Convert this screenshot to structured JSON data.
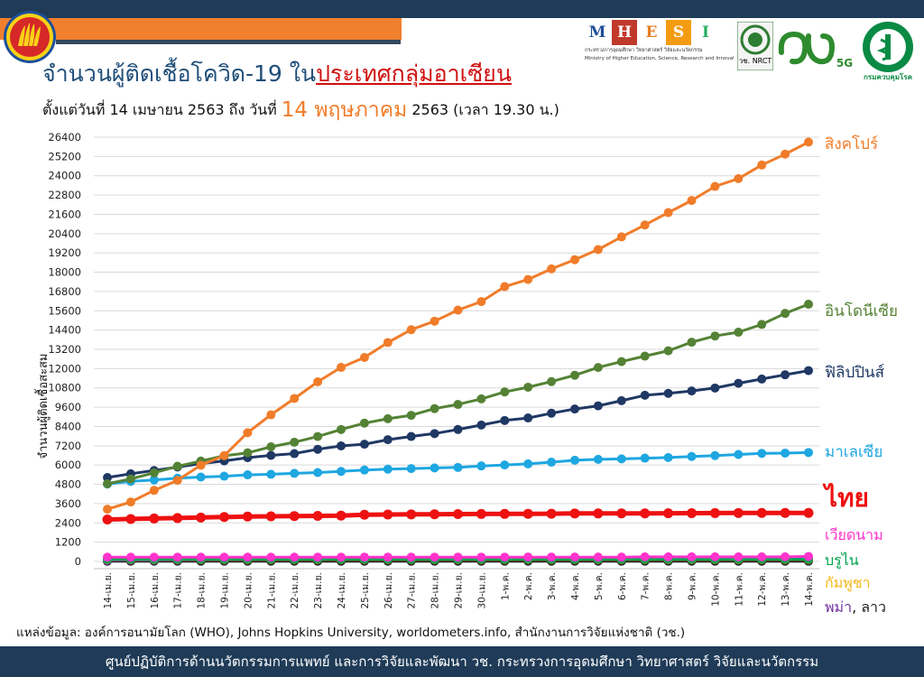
{
  "header": {
    "title_prefix": "จำนวนผู้ติดเชื้อโควิด-19 ใน",
    "title_highlight": "ประเทศกลุ่มอาเซียน",
    "subtitle_part1": "ตั้งแต่วันที่ 14 เมษายน 2563 ถึง วันที่ ",
    "subtitle_date": "14 พฤษภาคม",
    "subtitle_part2": " 2563 (เวลา 19.30 น.)"
  },
  "logos": {
    "mhesi_letters": [
      "M",
      "H",
      "E",
      "S",
      "I"
    ],
    "mhesi_colors": [
      "#1f4e99",
      "#c0392b",
      "#e67e22",
      "#f39c12",
      "#27ae60"
    ],
    "mhesi_subtitle": "กระทรวงการอุดมศึกษา วิทยาศาสตร์ วิจัยและนวัตกรรม",
    "mhesi_subtitle_en": "Ministry of Higher Education, Science, Research and Innovation",
    "nrct_text": "วช. NRCT",
    "fiveg_text": "5G",
    "ddc_text": "กรมควบคุมโรค"
  },
  "chart_data": {
    "type": "line",
    "ylabel": "จำนวนผู้ติดเชื้อสะสม",
    "ylim": [
      0,
      26400
    ],
    "yticks": [
      0,
      1200,
      2400,
      3600,
      4800,
      6000,
      7200,
      8400,
      9600,
      10800,
      12000,
      13200,
      14400,
      15600,
      16800,
      18000,
      19200,
      20400,
      21600,
      22800,
      24000,
      25200,
      26400
    ],
    "grid": true,
    "categories": [
      "14-เม.ย.",
      "15-เม.ย.",
      "16-เม.ย.",
      "17-เม.ย.",
      "18-เม.ย.",
      "19-เม.ย.",
      "20-เม.ย.",
      "21-เม.ย.",
      "22-เม.ย.",
      "23-เม.ย.",
      "24-เม.ย.",
      "25-เม.ย.",
      "26-เม.ย.",
      "27-เม.ย.",
      "28-เม.ย.",
      "29-เม.ย.",
      "30-เม.ย.",
      "1-พ.ค.",
      "2-พ.ค.",
      "3-พ.ค.",
      "4-พ.ค.",
      "5-พ.ค.",
      "6-พ.ค.",
      "7-พ.ค.",
      "8-พ.ค.",
      "9-พ.ค.",
      "10-พ.ค.",
      "11-พ.ค.",
      "12-พ.ค.",
      "13-พ.ค.",
      "14-พ.ค."
    ],
    "series": [
      {
        "name": "สิงคโปร์",
        "color": "#f07c2a",
        "values": [
          3252,
          3699,
          4427,
          5050,
          5992,
          6588,
          8014,
          9125,
          10141,
          11178,
          12075,
          12693,
          13624,
          14423,
          14951,
          15641,
          16169,
          17101,
          17548,
          18205,
          18778,
          19410,
          20198,
          20939,
          21707,
          22460,
          23336,
          23822,
          24671,
          25346,
          26098
        ]
      },
      {
        "name": "อินโดนีเซีย",
        "color": "#548235",
        "values": [
          4839,
          5136,
          5516,
          5923,
          6248,
          6575,
          6760,
          7135,
          7418,
          7775,
          8211,
          8607,
          8882,
          9096,
          9511,
          9771,
          10118,
          10551,
          10843,
          11192,
          11587,
          12071,
          12438,
          12776,
          13112,
          13645,
          14032,
          14265,
          14749,
          15438,
          16006
        ]
      },
      {
        "name": "ฟิลิปปินส์",
        "color": "#1f3864",
        "values": [
          5223,
          5453,
          5660,
          5878,
          6087,
          6259,
          6459,
          6599,
          6710,
          6981,
          7192,
          7294,
          7579,
          7777,
          7958,
          8212,
          8488,
          8772,
          8928,
          9223,
          9485,
          9684,
          10004,
          10343,
          10463,
          10610,
          10794,
          11086,
          11350,
          11618,
          11876
        ]
      },
      {
        "name": "มาเลเซีย",
        "color": "#1ea7e1",
        "values": [
          4817,
          4987,
          5072,
          5182,
          5251,
          5305,
          5389,
          5425,
          5482,
          5532,
          5603,
          5691,
          5742,
          5780,
          5820,
          5851,
          5945,
          6002,
          6071,
          6176,
          6298,
          6353,
          6383,
          6428,
          6467,
          6535,
          6589,
          6656,
          6726,
          6742,
          6779
        ]
      },
      {
        "name": "ไทย",
        "color": "#ee1111",
        "values": [
          2613,
          2643,
          2672,
          2700,
          2733,
          2765,
          2792,
          2811,
          2826,
          2839,
          2854,
          2907,
          2922,
          2931,
          2938,
          2947,
          2954,
          2960,
          2966,
          2969,
          2987,
          2988,
          2989,
          2992,
          3000,
          3004,
          3009,
          3015,
          3017,
          3017,
          3018
        ]
      },
      {
        "name": "เวียดนาม",
        "color": "#ff33cc",
        "values": [
          266,
          267,
          268,
          268,
          268,
          268,
          268,
          268,
          268,
          268,
          270,
          270,
          270,
          270,
          270,
          270,
          270,
          270,
          271,
          271,
          271,
          271,
          271,
          288,
          288,
          288,
          288,
          288,
          288,
          288,
          312
        ]
      },
      {
        "name": "บรูไน",
        "color": "#00a44f",
        "values": [
          136,
          136,
          136,
          136,
          138,
          138,
          138,
          138,
          138,
          138,
          138,
          138,
          138,
          138,
          138,
          138,
          138,
          138,
          138,
          138,
          138,
          138,
          138,
          138,
          141,
          141,
          141,
          141,
          141,
          141,
          141
        ]
      },
      {
        "name": "กัมพูชา",
        "color": "#f3b81a",
        "values": [
          122,
          122,
          122,
          122,
          122,
          122,
          122,
          122,
          122,
          122,
          122,
          122,
          122,
          122,
          122,
          122,
          122,
          122,
          122,
          122,
          122,
          122,
          122,
          122,
          122,
          122,
          122,
          122,
          122,
          122,
          122
        ]
      },
      {
        "name": "พม่า",
        "color": "#7030a0",
        "values": [
          74,
          85,
          88,
          98,
          111,
          119,
          121,
          127,
          140,
          144,
          145,
          146,
          146,
          146,
          150,
          151,
          151,
          151,
          151,
          155,
          161,
          161,
          161,
          162,
          177,
          178,
          180,
          180,
          180,
          181,
          181
        ]
      },
      {
        "name": "ลาว",
        "color": "#222222",
        "values": [
          19,
          19,
          19,
          19,
          19,
          19,
          19,
          19,
          19,
          19,
          19,
          19,
          19,
          19,
          19,
          19,
          19,
          19,
          19,
          19,
          19,
          19,
          19,
          19,
          19,
          19,
          19,
          19,
          19,
          19,
          19
        ]
      }
    ],
    "labels": {
      "singapore": "สิงคโปร์",
      "indonesia": "อินโดนีเซีย",
      "philippines": "ฟิลิปปินส์",
      "malaysia": "มาเลเซีย",
      "thailand": "ไทย",
      "vietnam": "เวียดนาม",
      "brunei": "บรูไน",
      "cambodia": "กัมพูชา",
      "myanmar": "พม่า",
      "laos_sep": ", ",
      "laos": "ลาว"
    }
  },
  "source_text": "แหล่งข้อมูล: องค์การอนามัยโลก (WHO), Johns Hopkins University, worldometers.info, สำนักงานการวิจัยแห่งชาติ (วช.)",
  "footer_text": "ศูนย์ปฏิบัติการด้านนวัตกรรมการแพทย์ และการวิจัยและพัฒนา  วช.   กระทรวงการอุดมศึกษา วิทยาศาสตร์ วิจัยและนวัตกรรม"
}
